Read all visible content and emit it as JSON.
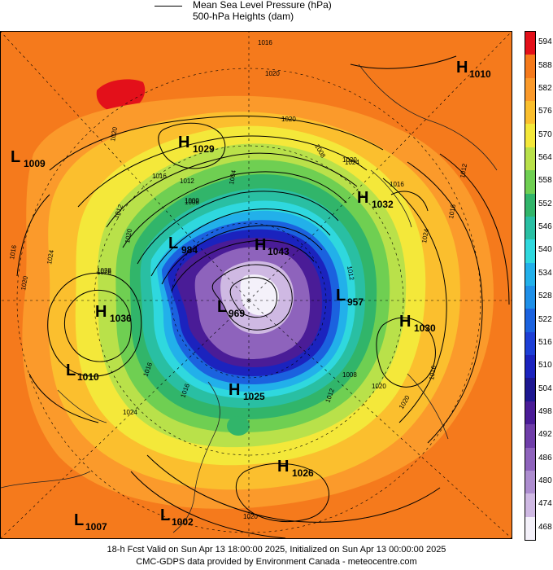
{
  "legend": {
    "line_label": "Mean Sea Level Pressure (hPa)",
    "fill_label": "500-hPa Heights (dam)"
  },
  "colorbar": {
    "levels": [
      "594",
      "588",
      "582",
      "576",
      "570",
      "564",
      "558",
      "552",
      "546",
      "540",
      "534",
      "528",
      "522",
      "516",
      "510",
      "504",
      "498",
      "492",
      "486",
      "480",
      "474",
      "468"
    ],
    "colors": [
      "#e3101a",
      "#f57a1c",
      "#fb9a2b",
      "#fbbf2e",
      "#f4e83a",
      "#b9e14a",
      "#6fcf52",
      "#31b56a",
      "#29bfa3",
      "#2fd8de",
      "#22b0ea",
      "#1e8fe8",
      "#1b62df",
      "#1d3fd6",
      "#1b23be",
      "#1d1791",
      "#4a1c97",
      "#6f3ea9",
      "#8e63bc",
      "#ad8dcf",
      "#cfb9e3",
      "#f4f1fa"
    ]
  },
  "systems": [
    {
      "type": "H",
      "value": "1010"
    },
    {
      "type": "L",
      "value": "1009"
    },
    {
      "type": "H",
      "value": "1029"
    },
    {
      "type": "H",
      "value": "1032"
    },
    {
      "type": "L",
      "value": "984"
    },
    {
      "type": "H",
      "value": "1043"
    },
    {
      "type": "H",
      "value": "1036"
    },
    {
      "type": "L",
      "value": "969"
    },
    {
      "type": "L",
      "value": "957"
    },
    {
      "type": "H",
      "value": "1030"
    },
    {
      "type": "L",
      "value": "1010"
    },
    {
      "type": "H",
      "value": "1025"
    },
    {
      "type": "H",
      "value": "1026"
    },
    {
      "type": "L",
      "value": "1007"
    },
    {
      "type": "L",
      "value": "1002"
    }
  ],
  "isobar_labels": [
    "1016",
    "1020",
    "1020",
    "1016",
    "1012",
    "1008",
    "1020",
    "1024",
    "1028",
    "1020",
    "1016",
    "1012",
    "1024",
    "1016",
    "1012",
    "1008",
    "1004",
    "1000",
    "1016",
    "1020",
    "1024",
    "1028",
    "1020",
    "1016",
    "1020",
    "1020",
    "1008",
    "1012",
    "1016",
    "1020",
    "1024",
    "1016",
    "1012"
  ],
  "footer": {
    "line1": "18-h Fcst Valid on Sun Apr 13 18:00:00 2025, Initialized on Sun Apr 13 00:00:00 2025",
    "line2": "CMC-GDPS data provided by Environment Canada - meteocentre.com"
  }
}
